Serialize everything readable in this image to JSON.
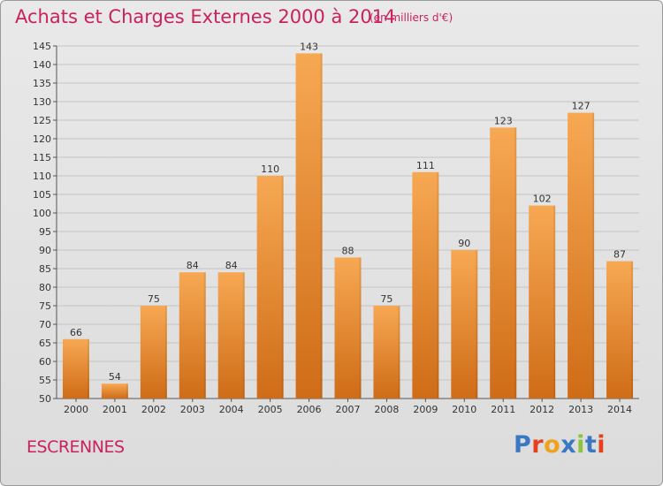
{
  "title": "Achats et Charges Externes 2000 à 2014",
  "subtitle": "(en milliers d'€)",
  "commune": "ESCRENNES",
  "logo": {
    "text": "Proxiti",
    "letter_colors": [
      "#3b78c4",
      "#e8401c",
      "#f0a21a",
      "#3b78c4",
      "#8cc43c",
      "#3b78c4",
      "#e8401c"
    ]
  },
  "colors": {
    "title": "#c8225f",
    "bar_light": "#f7a853",
    "bar_dark": "#cf6c17",
    "axis_text": "#333333"
  },
  "chart_data": {
    "type": "bar",
    "categories": [
      "2000",
      "2001",
      "2002",
      "2003",
      "2004",
      "2005",
      "2006",
      "2007",
      "2008",
      "2009",
      "2010",
      "2011",
      "2012",
      "2013",
      "2014"
    ],
    "values": [
      66,
      54,
      75,
      84,
      84,
      110,
      143,
      88,
      75,
      111,
      90,
      123,
      102,
      127,
      87
    ],
    "ylim": [
      50,
      145
    ],
    "yticks": [
      50,
      55,
      60,
      65,
      70,
      75,
      80,
      85,
      90,
      95,
      100,
      105,
      110,
      115,
      120,
      125,
      130,
      135,
      140,
      145
    ],
    "grid": true,
    "xlabel": "",
    "ylabel": ""
  }
}
